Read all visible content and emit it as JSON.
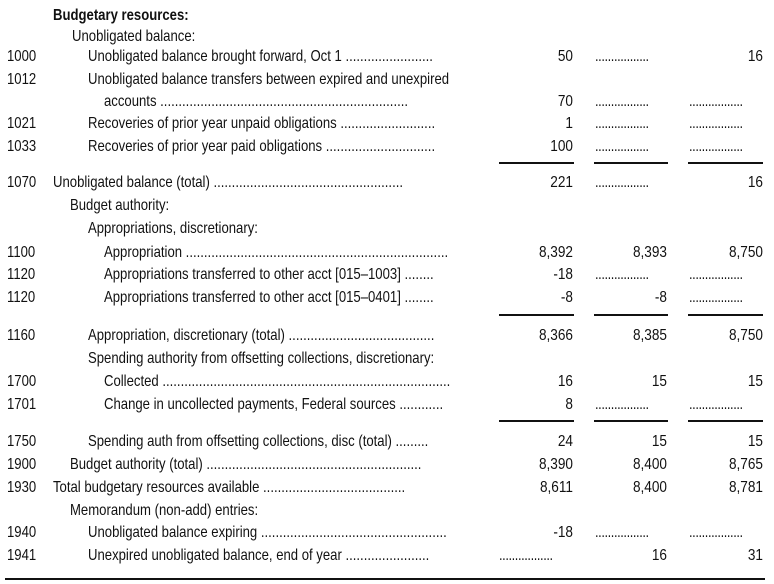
{
  "section_title": "Budgetary resources:",
  "rows": [
    {
      "code": "",
      "label": "Unobligated balance:",
      "indent": 72,
      "values": [
        "",
        "",
        ""
      ]
    },
    {
      "code": "1000",
      "label": "Unobligated balance brought forward, Oct 1 ........................",
      "indent": 88,
      "values": [
        "50",
        "",
        "16"
      ]
    },
    {
      "code": "1012",
      "label": "Unobligated balance transfers between expired and unexpired",
      "indent": 88,
      "values": [
        "",
        "",
        ""
      ]
    },
    {
      "code": "",
      "label": "accounts ....................................................................",
      "indent": 104,
      "values": [
        "70",
        "",
        ""
      ]
    },
    {
      "code": "1021",
      "label": "Recoveries of prior year unpaid obligations ..........................",
      "indent": 88,
      "values": [
        "1",
        "",
        ""
      ]
    },
    {
      "code": "1033",
      "label": "Recoveries of prior year paid obligations ..............................",
      "indent": 88,
      "values": [
        "100",
        "",
        ""
      ]
    },
    {
      "code": "1070",
      "label": "Unobligated balance (total) ....................................................",
      "indent": 53,
      "values": [
        "221",
        "",
        "16"
      ]
    },
    {
      "code": "",
      "label": "Budget authority:",
      "indent": 70,
      "values": [
        "",
        "",
        ""
      ]
    },
    {
      "code": "",
      "label": "Appropriations, discretionary:",
      "indent": 88,
      "values": [
        "",
        "",
        ""
      ]
    },
    {
      "code": "1100",
      "label": "Appropriation ........................................................................",
      "indent": 104,
      "values": [
        "8,392",
        "8,393",
        "8,750"
      ]
    },
    {
      "code": "1120",
      "label": "Appropriations transferred to other acct [015–1003] ........",
      "indent": 104,
      "values": [
        "-18",
        "",
        ""
      ]
    },
    {
      "code": "1120",
      "label": "Appropriations transferred to other acct [015–0401] ........",
      "indent": 104,
      "values": [
        "-8",
        "-8",
        ""
      ]
    },
    {
      "code": "1160",
      "label": "Appropriation, discretionary (total) ........................................",
      "indent": 88,
      "values": [
        "8,366",
        "8,385",
        "8,750"
      ]
    },
    {
      "code": "",
      "label": "Spending authority from offsetting collections, discretionary:",
      "indent": 88,
      "values": [
        "",
        "",
        ""
      ]
    },
    {
      "code": "1700",
      "label": "Collected ...............................................................................",
      "indent": 104,
      "values": [
        "16",
        "15",
        "15"
      ]
    },
    {
      "code": "1701",
      "label": "Change in uncollected payments, Federal sources ............",
      "indent": 104,
      "values": [
        "8",
        "",
        ""
      ]
    },
    {
      "code": "1750",
      "label": "Spending auth from offsetting collections, disc (total) .........",
      "indent": 88,
      "values": [
        "24",
        "15",
        "15"
      ]
    },
    {
      "code": "1900",
      "label": "Budget authority (total) ...........................................................",
      "indent": 70,
      "values": [
        "8,390",
        "8,400",
        "8,765"
      ]
    },
    {
      "code": "1930",
      "label": "Total budgetary resources available .......................................",
      "indent": 53,
      "values": [
        "8,611",
        "8,400",
        "8,781"
      ]
    },
    {
      "code": "",
      "label": "Memorandum (non-add) entries:",
      "indent": 70,
      "values": [
        "",
        "",
        ""
      ]
    },
    {
      "code": "1940",
      "label": "Unobligated balance expiring ...................................................",
      "indent": 88,
      "values": [
        "-18",
        "",
        ""
      ]
    },
    {
      "code": "1941",
      "label": "Unexpired unobligated balance, end of year .......................",
      "indent": 88,
      "values": [
        "",
        "16",
        "31"
      ]
    }
  ],
  "dot_leader": ".................",
  "rule_after_rows": [
    5,
    11,
    15
  ]
}
